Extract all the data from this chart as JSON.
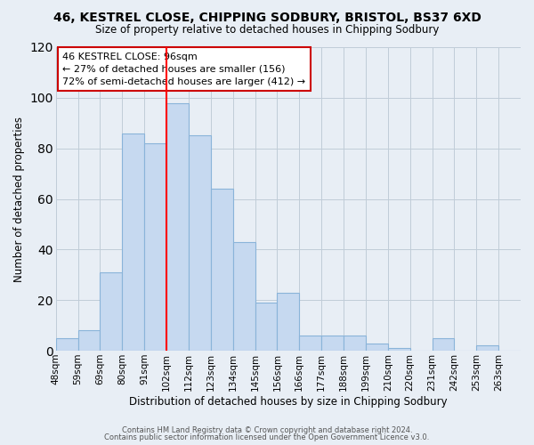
{
  "title_line1": "46, KESTREL CLOSE, CHIPPING SODBURY, BRISTOL, BS37 6XD",
  "title_line2": "Size of property relative to detached houses in Chipping Sodbury",
  "xlabel": "Distribution of detached houses by size in Chipping Sodbury",
  "ylabel": "Number of detached properties",
  "footer_line1": "Contains HM Land Registry data © Crown copyright and database right 2024.",
  "footer_line2": "Contains public sector information licensed under the Open Government Licence v3.0.",
  "bar_labels": [
    "48sqm",
    "59sqm",
    "69sqm",
    "80sqm",
    "91sqm",
    "102sqm",
    "112sqm",
    "123sqm",
    "134sqm",
    "145sqm",
    "156sqm",
    "166sqm",
    "177sqm",
    "188sqm",
    "199sqm",
    "210sqm",
    "220sqm",
    "231sqm",
    "242sqm",
    "253sqm",
    "263sqm"
  ],
  "bar_heights": [
    5,
    8,
    31,
    86,
    82,
    98,
    85,
    64,
    43,
    19,
    23,
    6,
    6,
    6,
    3,
    1,
    0,
    5,
    0,
    2,
    0
  ],
  "bar_color": "#c6d9f0",
  "bar_edge_color": "#8ab4d9",
  "marker_index": 5,
  "marker_color": "red",
  "ylim": [
    0,
    120
  ],
  "yticks": [
    0,
    20,
    40,
    60,
    80,
    100,
    120
  ],
  "grid_color": "#c0ccd8",
  "bg_color": "#e8eef5",
  "annotation_title": "46 KESTREL CLOSE: 96sqm",
  "annotation_line1": "← 27% of detached houses are smaller (156)",
  "annotation_line2": "72% of semi-detached houses are larger (412) →",
  "annotation_box_color": "white",
  "annotation_box_edge": "#cc0000"
}
